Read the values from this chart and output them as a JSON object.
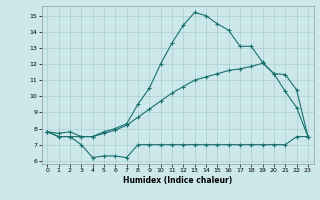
{
  "xlabel": "Humidex (Indice chaleur)",
  "bg_color": "#cce8ea",
  "grid_color": "#aacdd2",
  "line_color": "#1a7070",
  "xlim": [
    -0.5,
    23.5
  ],
  "ylim": [
    5.8,
    15.6
  ],
  "xticks": [
    0,
    1,
    2,
    3,
    4,
    5,
    6,
    7,
    8,
    9,
    10,
    11,
    12,
    13,
    14,
    15,
    16,
    17,
    18,
    19,
    20,
    21,
    22,
    23
  ],
  "yticks": [
    6,
    7,
    8,
    9,
    10,
    11,
    12,
    13,
    14,
    15
  ],
  "line_min_x": [
    0,
    1,
    2,
    3,
    4,
    5,
    6,
    7,
    8,
    9,
    10,
    11,
    12,
    13,
    14,
    15,
    16,
    17,
    18,
    19,
    20,
    21,
    22,
    23
  ],
  "line_min_y": [
    7.8,
    7.5,
    7.5,
    7.0,
    6.2,
    6.3,
    6.3,
    6.2,
    7.0,
    7.0,
    7.0,
    7.0,
    7.0,
    7.0,
    7.0,
    7.0,
    7.0,
    7.0,
    7.0,
    7.0,
    7.0,
    7.0,
    7.5,
    7.5
  ],
  "line_mean_x": [
    0,
    1,
    2,
    3,
    4,
    5,
    6,
    7,
    8,
    9,
    10,
    11,
    12,
    13,
    14,
    15,
    16,
    17,
    18,
    19,
    20,
    21,
    22,
    23
  ],
  "line_mean_y": [
    7.8,
    7.7,
    7.8,
    7.5,
    7.5,
    7.7,
    7.9,
    8.2,
    8.7,
    9.2,
    9.7,
    10.2,
    10.6,
    11.0,
    11.2,
    11.4,
    11.6,
    11.7,
    11.85,
    12.05,
    11.4,
    11.35,
    10.4,
    7.5
  ],
  "line_max_x": [
    0,
    1,
    2,
    3,
    4,
    5,
    6,
    7,
    8,
    9,
    10,
    11,
    12,
    13,
    14,
    15,
    16,
    17,
    18,
    19,
    20,
    21,
    22,
    23
  ],
  "line_max_y": [
    7.8,
    7.5,
    7.5,
    7.5,
    7.5,
    7.8,
    8.0,
    8.3,
    9.5,
    10.5,
    12.0,
    13.3,
    14.4,
    15.2,
    15.0,
    14.5,
    14.1,
    13.1,
    13.1,
    12.1,
    11.4,
    10.3,
    9.3,
    7.5
  ]
}
